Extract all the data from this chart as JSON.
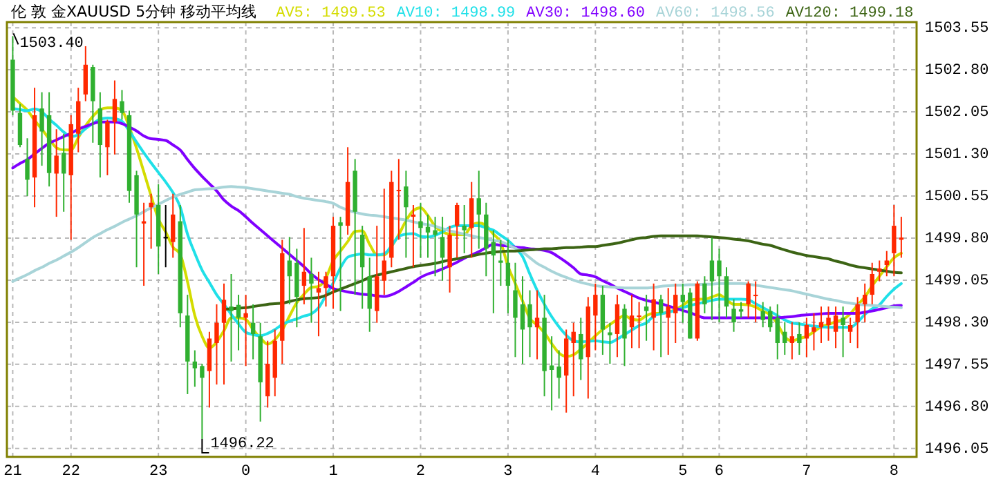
{
  "chart_data": {
    "type": "candlestick",
    "title": "伦 敦 金XAUUSD 5分钟 移动平均线",
    "legend": "top",
    "grid": true,
    "categories": [
      "21",
      null,
      null,
      null,
      null,
      null,
      null,
      null,
      "22",
      null,
      null,
      null,
      null,
      null,
      null,
      null,
      null,
      null,
      null,
      null,
      "23",
      null,
      null,
      null,
      null,
      null,
      null,
      null,
      null,
      null,
      null,
      null,
      "0",
      null,
      null,
      null,
      null,
      null,
      null,
      null,
      null,
      null,
      null,
      null,
      "1",
      null,
      null,
      null,
      null,
      null,
      null,
      null,
      null,
      null,
      null,
      null,
      "2",
      null,
      null,
      null,
      null,
      null,
      null,
      null,
      null,
      null,
      null,
      null,
      "3",
      null,
      null,
      null,
      null,
      null,
      null,
      null,
      null,
      null,
      null,
      null,
      "4",
      null,
      null,
      null,
      null,
      null,
      null,
      null,
      null,
      null,
      null,
      null,
      "5",
      null,
      null,
      null,
      null,
      "6",
      null,
      null,
      null,
      null,
      null,
      null,
      null,
      null,
      null,
      null,
      null,
      "7",
      null,
      null,
      null,
      null,
      null,
      null,
      null,
      null,
      null,
      null,
      null,
      "8",
      null
    ],
    "ylim": [
      1495.9,
      1503.65
    ],
    "yticks": [
      {
        "value": 1496.05,
        "label": "1496.05"
      },
      {
        "value": 1496.8,
        "label": "1496.80"
      },
      {
        "value": 1497.55,
        "label": "1497.55"
      },
      {
        "value": 1498.3,
        "label": "1498.30"
      },
      {
        "value": 1499.05,
        "label": "1499.05"
      },
      {
        "value": 1499.8,
        "label": "1499.80"
      },
      {
        "value": 1500.55,
        "label": "1500.55"
      },
      {
        "value": 1501.3,
        "label": "1501.30"
      },
      {
        "value": 1502.05,
        "label": "1502.05"
      },
      {
        "value": 1502.8,
        "label": "1502.80"
      },
      {
        "value": 1503.55,
        "label": "1503.55"
      }
    ],
    "ohlc": [
      [
        1502.98,
        1503.4,
        1501.99,
        1502.07
      ],
      [
        1502.03,
        1502.19,
        1501.42,
        1501.46
      ],
      [
        1501.21,
        1501.58,
        1500.55,
        1500.84
      ],
      [
        1500.88,
        1502.48,
        1500.35,
        1501.99
      ],
      [
        1502.11,
        1502.4,
        1501.09,
        1501.7
      ],
      [
        1501.99,
        1502.4,
        1500.72,
        1500.96
      ],
      [
        1500.95,
        1501.74,
        1500.18,
        1501.27
      ],
      [
        1501.32,
        1501.66,
        1500.27,
        1500.95
      ],
      [
        1500.92,
        1501.99,
        1499.77,
        1501.83
      ],
      [
        1501.66,
        1502.48,
        1501.33,
        1502.24
      ],
      [
        1502.36,
        1503.22,
        1502.24,
        1502.89
      ],
      [
        1502.85,
        1502.89,
        1501.5,
        1502.24
      ],
      [
        1502.11,
        1502.4,
        1500.88,
        1501.46
      ],
      [
        1501.42,
        1501.91,
        1500.92,
        1501.87
      ],
      [
        1501.87,
        1502.61,
        1501.29,
        1502.28
      ],
      [
        1502.24,
        1502.44,
        1501.91,
        1502.03
      ],
      [
        1501.99,
        1502.07,
        1500.43,
        1500.64
      ],
      [
        1500.92,
        1501.0,
        1499.28,
        1500.22
      ],
      [
        1500.06,
        1500.43,
        1498.95,
        1500.1
      ],
      [
        1500.35,
        1500.59,
        1499.61,
        1500.43
      ],
      [
        1500.39,
        1500.76,
        1499.16,
        1499.65
      ],
      [
        1499.82,
        1500.39,
        1499.28,
        1499.82
      ],
      [
        1499.73,
        1500.59,
        1499.45,
        1500.22
      ],
      [
        1500.1,
        1500.39,
        1498.21,
        1498.46
      ],
      [
        1498.42,
        1498.79,
        1497.02,
        1497.6
      ],
      [
        1497.6,
        1497.8,
        1497.15,
        1497.48
      ],
      [
        1497.52,
        1497.56,
        1496.22,
        1497.31
      ],
      [
        1497.43,
        1498.13,
        1496.78,
        1498.01
      ],
      [
        1497.93,
        1498.62,
        1497.19,
        1498.29
      ],
      [
        1498.29,
        1498.99,
        1497.19,
        1498.7
      ],
      [
        1498.58,
        1499.16,
        1497.6,
        1498.5
      ],
      [
        1498.61,
        1498.79,
        1497.8,
        1498.38
      ],
      [
        1498.38,
        1498.79,
        1497.52,
        1498.46
      ],
      [
        1498.29,
        1498.62,
        1497.64,
        1498.09
      ],
      [
        1498.05,
        1498.29,
        1496.53,
        1497.23
      ],
      [
        1496.98,
        1497.97,
        1496.78,
        1497.56
      ],
      [
        1497.31,
        1498.17,
        1496.98,
        1497.97
      ],
      [
        1497.97,
        1499.77,
        1497.56,
        1499.53
      ],
      [
        1499.4,
        1499.82,
        1498.62,
        1499.12
      ],
      [
        1499.36,
        1499.61,
        1498.21,
        1498.75
      ],
      [
        1498.95,
        1499.98,
        1498.62,
        1499.2
      ],
      [
        1499.16,
        1499.45,
        1498.29,
        1498.99
      ],
      [
        1498.83,
        1499.2,
        1498.05,
        1498.91
      ],
      [
        1498.91,
        1499.2,
        1498.58,
        1499.12
      ],
      [
        1499.12,
        1500.18,
        1498.54,
        1500.02
      ],
      [
        1500.08,
        1500.18,
        1498.5,
        1500.02
      ],
      [
        1500.02,
        1501.42,
        1499.86,
        1500.8
      ],
      [
        1501.0,
        1501.21,
        1498.79,
        1500.27
      ],
      [
        1499.86,
        1500.02,
        1498.54,
        1499.28
      ],
      [
        1499.12,
        1499.45,
        1498.13,
        1498.54
      ],
      [
        1498.5,
        1500.02,
        1498.29,
        1499.12
      ],
      [
        1499.04,
        1500.68,
        1498.79,
        1499.4
      ],
      [
        1499.45,
        1501.0,
        1499.28,
        1500.8
      ],
      [
        1500.64,
        1501.21,
        1499.77,
        1500.66
      ],
      [
        1500.72,
        1501.0,
        1499.45,
        1500.35
      ],
      [
        1500.18,
        1500.39,
        1499.28,
        1500.22
      ],
      [
        1500.1,
        1500.43,
        1499.45,
        1499.98
      ],
      [
        1500.0,
        1500.22,
        1499.45,
        1499.9
      ],
      [
        1499.94,
        1500.18,
        1499.12,
        1499.86
      ],
      [
        1499.82,
        1500.18,
        1499.04,
        1499.45
      ],
      [
        1499.28,
        1500.02,
        1498.83,
        1499.86
      ],
      [
        1500.02,
        1500.43,
        1499.45,
        1500.39
      ],
      [
        1500.02,
        1500.39,
        1499.53,
        1499.94
      ],
      [
        1499.98,
        1500.8,
        1499.45,
        1500.51
      ],
      [
        1500.51,
        1501.0,
        1499.61,
        1500.22
      ],
      [
        1500.22,
        1500.43,
        1499.12,
        1499.61
      ],
      [
        1499.73,
        1499.94,
        1498.46,
        1499.49
      ],
      [
        1499.4,
        1499.77,
        1498.95,
        1499.36
      ],
      [
        1499.36,
        1499.77,
        1498.46,
        1498.95
      ],
      [
        1498.87,
        1499.36,
        1497.68,
        1498.38
      ],
      [
        1498.62,
        1499.12,
        1497.56,
        1498.17
      ],
      [
        1498.62,
        1498.87,
        1497.68,
        1498.21
      ],
      [
        1498.21,
        1498.87,
        1497.64,
        1498.38
      ],
      [
        1498.38,
        1498.79,
        1496.98,
        1497.43
      ],
      [
        1497.53,
        1498.05,
        1496.73,
        1497.45
      ],
      [
        1497.51,
        1497.8,
        1496.94,
        1497.31
      ],
      [
        1497.35,
        1498.17,
        1496.69,
        1498.01
      ],
      [
        1497.93,
        1498.29,
        1496.98,
        1498.13
      ],
      [
        1498.09,
        1498.38,
        1497.27,
        1497.64
      ],
      [
        1497.68,
        1498.75,
        1496.94,
        1498.58
      ],
      [
        1498.42,
        1498.99,
        1497.8,
        1498.79
      ],
      [
        1498.79,
        1498.95,
        1497.72,
        1498.17
      ],
      [
        1498.12,
        1498.29,
        1497.56,
        1498.07
      ],
      [
        1498.09,
        1498.79,
        1497.68,
        1498.62
      ],
      [
        1498.54,
        1498.62,
        1497.52,
        1498.01
      ],
      [
        1498.21,
        1498.79,
        1497.84,
        1498.42
      ],
      [
        1498.4,
        1498.66,
        1497.84,
        1498.42
      ],
      [
        1498.58,
        1498.79,
        1497.97,
        1498.5
      ],
      [
        1498.38,
        1498.99,
        1497.8,
        1498.71
      ],
      [
        1498.71,
        1498.79,
        1497.68,
        1498.46
      ],
      [
        1498.38,
        1498.91,
        1497.72,
        1498.58
      ],
      [
        1498.46,
        1498.99,
        1497.93,
        1498.79
      ],
      [
        1498.79,
        1498.99,
        1498.29,
        1498.66
      ],
      [
        1498.83,
        1498.91,
        1498.01,
        1498.01
      ],
      [
        1498.01,
        1499.03,
        1497.97,
        1498.99
      ],
      [
        1498.99,
        1499.12,
        1498.46,
        1498.62
      ],
      [
        1499.4,
        1499.81,
        1498.34,
        1499.03
      ],
      [
        1499.4,
        1499.61,
        1498.3,
        1499.12
      ],
      [
        1499.12,
        1499.28,
        1498.38,
        1498.58
      ],
      [
        1498.54,
        1498.71,
        1498.13,
        1498.3
      ],
      [
        1498.53,
        1498.66,
        1498.38,
        1498.49
      ],
      [
        1498.62,
        1499.03,
        1498.38,
        1498.99
      ],
      [
        1498.77,
        1499.03,
        1498.3,
        1498.79
      ],
      [
        1498.5,
        1498.66,
        1498.21,
        1498.34
      ],
      [
        1498.5,
        1498.58,
        1498.13,
        1498.21
      ],
      [
        1498.38,
        1498.62,
        1497.64,
        1497.93
      ],
      [
        1498.13,
        1498.3,
        1497.72,
        1497.93
      ],
      [
        1497.93,
        1498.3,
        1497.64,
        1498.05
      ],
      [
        1498.09,
        1498.3,
        1497.72,
        1497.93
      ],
      [
        1498.01,
        1498.38,
        1497.68,
        1498.25
      ],
      [
        1498.13,
        1498.46,
        1497.8,
        1498.21
      ],
      [
        1498.21,
        1498.58,
        1497.93,
        1498.3
      ],
      [
        1498.25,
        1498.58,
        1497.97,
        1498.38
      ],
      [
        1498.13,
        1498.58,
        1497.84,
        1498.42
      ],
      [
        1498.38,
        1498.58,
        1497.68,
        1498.25
      ],
      [
        1498.13,
        1498.38,
        1497.93,
        1498.25
      ],
      [
        1498.3,
        1498.75,
        1497.84,
        1498.62
      ],
      [
        1498.62,
        1498.99,
        1498.3,
        1498.79
      ],
      [
        1498.79,
        1499.36,
        1498.62,
        1499.16
      ],
      [
        1499.2,
        1499.4,
        1499.03,
        1499.26
      ],
      [
        1499.32,
        1499.57,
        1499.12,
        1499.4
      ],
      [
        1499.53,
        1500.39,
        1499.12,
        1500.02
      ],
      [
        1499.77,
        1500.18,
        1499.45,
        1499.81
      ]
    ],
    "colors": [
      "#30b030",
      "#30b030",
      "#30b030",
      "#ff2800",
      "#30b030",
      "#30b030",
      "#ff2800",
      "#30b030",
      "#ff2800",
      "#ff2800",
      "#ff2800",
      "#30b030",
      "#30b030",
      "#ff2800",
      "#ff2800",
      "#30b030",
      "#30b030",
      "#30b030",
      "#ff2800",
      "#ff2800",
      "#30b030",
      "#000000",
      "#ff2800",
      "#30b030",
      "#30b030",
      "#30b030",
      "#30b030",
      "#ff2800",
      "#ff2800",
      "#ff2800",
      "#30b030",
      "#30b030",
      "#ff2800",
      "#30b030",
      "#30b030",
      "#ff2800",
      "#ff2800",
      "#ff2800",
      "#30b030",
      "#30b030",
      "#ff2800",
      "#30b030",
      "#ff2800",
      "#ff2800",
      "#ff2800",
      "#30b030",
      "#ff2800",
      "#30b030",
      "#30b030",
      "#30b030",
      "#ff2800",
      "#ff2800",
      "#ff2800",
      "#ff2800",
      "#30b030",
      "#ff2800",
      "#30b030",
      "#30b030",
      "#30b030",
      "#30b030",
      "#ff2800",
      "#ff2800",
      "#30b030",
      "#ff2800",
      "#30b030",
      "#30b030",
      "#30b030",
      "#30b030",
      "#30b030",
      "#30b030",
      "#30b030",
      "#30b030",
      "#ff2800",
      "#30b030",
      "#30b030",
      "#30b030",
      "#ff2800",
      "#ff2800",
      "#30b030",
      "#ff2800",
      "#ff2800",
      "#30b030",
      "#30b030",
      "#ff2800",
      "#30b030",
      "#ff2800",
      "#ff2800",
      "#30b030",
      "#ff2800",
      "#30b030",
      "#ff2800",
      "#ff2800",
      "#30b030",
      "#30b030",
      "#ff2800",
      "#30b030",
      "#30b030",
      "#30b030",
      "#30b030",
      "#30b030",
      "#30b030",
      "#ff2800",
      "#ff2800",
      "#30b030",
      "#30b030",
      "#30b030",
      "#30b030",
      "#ff2800",
      "#30b030",
      "#ff2800",
      "#ff2800",
      "#ff2800",
      "#ff2800",
      "#ff2800",
      "#30b030",
      "#ff2800",
      "#ff2800",
      "#ff2800",
      "#ff2800",
      "#ff2800",
      "#ff2800",
      "#ff2800",
      "#ff2800"
    ],
    "series": [
      {
        "name": "AV5: 1499.53",
        "type": "line",
        "color": "#d4dc00",
        "values": [
          1502.32,
          1502.2,
          1502.08,
          1501.9,
          1501.74,
          1501.57,
          1501.41,
          1501.37,
          1501.37,
          1501.59,
          1501.8,
          1501.97,
          1502.09,
          1502.12,
          1502.12,
          1502.07,
          1501.78,
          1501.4,
          1500.98,
          1500.55,
          1500.14,
          1499.91,
          1499.64,
          1499.51,
          1499.02,
          1498.42,
          1498.05,
          1497.84,
          1497.95,
          1498.15,
          1498.38,
          1498.38,
          1498.35,
          1498.17,
          1498.02,
          1497.91,
          1497.99,
          1498.16,
          1498.41,
          1498.65,
          1498.8,
          1498.92,
          1498.94,
          1499.09,
          1499.4,
          1499.57,
          1499.74,
          1499.92,
          1499.93,
          1499.69,
          1499.5,
          1499.5,
          1499.65,
          1499.86,
          1500.11,
          1500.29,
          1500.34,
          1500.2,
          1500.01,
          1499.91,
          1499.87,
          1499.86,
          1499.86,
          1500.02,
          1500.07,
          1500.02,
          1499.87,
          1499.72,
          1499.3,
          1498.99,
          1498.68,
          1498.37,
          1498.25,
          1498.11,
          1497.92,
          1497.75,
          1497.69,
          1497.72,
          1497.82,
          1497.93,
          1498.06,
          1498.17,
          1498.26,
          1498.35,
          1498.42,
          1498.35,
          1498.34,
          1498.42,
          1498.46,
          1498.46,
          1498.48,
          1498.53,
          1498.6,
          1498.69,
          1498.71,
          1498.71,
          1498.75,
          1498.79,
          1498.7,
          1498.62,
          1498.62,
          1498.61,
          1498.57,
          1498.5,
          1498.43,
          1498.27,
          1498.04,
          1497.97,
          1498.01,
          1498.05,
          1498.13,
          1498.22,
          1498.26,
          1498.31,
          1498.35,
          1498.45,
          1498.61,
          1498.75,
          1498.95,
          1499.12,
          1499.29,
          1499.45,
          1499.53
        ]
      },
      {
        "name": "AV10: 1498.99",
        "type": "line",
        "color": "#20e0e8",
        "values": [
          1502.11,
          1502.09,
          1502.07,
          1502.1,
          1502.05,
          1501.92,
          1501.81,
          1501.69,
          1501.61,
          1501.64,
          1501.75,
          1501.84,
          1501.92,
          1501.94,
          1501.93,
          1501.88,
          1501.71,
          1501.51,
          1501.32,
          1501.14,
          1500.97,
          1500.8,
          1500.61,
          1500.35,
          1499.87,
          1499.53,
          1499.23,
          1499.01,
          1498.79,
          1498.62,
          1498.44,
          1498.27,
          1498.12,
          1498.08,
          1498.06,
          1498.1,
          1498.17,
          1498.26,
          1498.32,
          1498.36,
          1498.41,
          1498.45,
          1498.56,
          1498.78,
          1499.0,
          1499.27,
          1499.46,
          1499.5,
          1499.52,
          1499.5,
          1499.5,
          1499.52,
          1499.66,
          1499.83,
          1499.87,
          1499.88,
          1499.83,
          1499.82,
          1499.85,
          1499.91,
          1499.99,
          1500.02,
          1500.02,
          1500.02,
          1500.02,
          1499.98,
          1499.94,
          1499.85,
          1499.76,
          1499.63,
          1499.47,
          1499.16,
          1498.87,
          1498.62,
          1498.4,
          1498.22,
          1498.07,
          1497.97,
          1497.95,
          1497.96,
          1497.97,
          1497.95,
          1497.94,
          1498.0,
          1498.08,
          1498.16,
          1498.24,
          1498.29,
          1498.41,
          1498.45,
          1498.48,
          1498.51,
          1498.56,
          1498.6,
          1498.63,
          1498.66,
          1498.69,
          1498.71,
          1498.71,
          1498.71,
          1498.71,
          1498.7,
          1498.63,
          1498.56,
          1498.49,
          1498.42,
          1498.34,
          1498.29,
          1498.27,
          1498.25,
          1498.23,
          1498.22,
          1498.21,
          1498.21,
          1498.21,
          1498.21,
          1498.3,
          1498.44,
          1498.54,
          1498.61,
          1498.76,
          1498.89,
          1498.99
        ]
      },
      {
        "name": "AV30: 1498.60",
        "type": "line",
        "color": "#8000ff",
        "values": [
          1501.05,
          1501.13,
          1501.2,
          1501.3,
          1501.4,
          1501.49,
          1501.55,
          1501.61,
          1501.67,
          1501.74,
          1501.79,
          1501.84,
          1501.87,
          1501.87,
          1501.87,
          1501.84,
          1501.78,
          1501.71,
          1501.62,
          1501.57,
          1501.56,
          1501.54,
          1501.46,
          1501.37,
          1501.2,
          1501.04,
          1500.9,
          1500.77,
          1500.64,
          1500.48,
          1500.37,
          1500.29,
          1500.18,
          1500.06,
          1499.95,
          1499.84,
          1499.73,
          1499.62,
          1499.51,
          1499.4,
          1499.29,
          1499.16,
          1499.06,
          1498.98,
          1498.9,
          1498.87,
          1498.84,
          1498.82,
          1498.8,
          1498.79,
          1498.77,
          1498.76,
          1498.79,
          1498.85,
          1498.93,
          1499.01,
          1499.1,
          1499.16,
          1499.2,
          1499.25,
          1499.31,
          1499.37,
          1499.44,
          1499.5,
          1499.56,
          1499.63,
          1499.69,
          1499.67,
          1499.66,
          1499.64,
          1499.63,
          1499.61,
          1499.6,
          1499.58,
          1499.54,
          1499.46,
          1499.37,
          1499.27,
          1499.16,
          1499.14,
          1499.11,
          1499.04,
          1498.98,
          1498.91,
          1498.85,
          1498.79,
          1498.73,
          1498.69,
          1498.66,
          1498.63,
          1498.59,
          1498.55,
          1498.51,
          1498.47,
          1498.42,
          1498.38,
          1498.38,
          1498.38,
          1498.38,
          1498.38,
          1498.38,
          1498.38,
          1498.38,
          1498.38,
          1498.38,
          1498.38,
          1498.39,
          1498.4,
          1498.42,
          1498.43,
          1498.44,
          1498.45,
          1498.46,
          1498.46,
          1498.46,
          1498.46,
          1498.46,
          1498.48,
          1498.5,
          1498.53,
          1498.56,
          1498.59,
          1498.6
        ]
      },
      {
        "name": "AV60: 1498.56",
        "type": "line",
        "color": "#a8d4d8",
        "values": [
          1499.03,
          1499.09,
          1499.15,
          1499.22,
          1499.28,
          1499.35,
          1499.41,
          1499.48,
          1499.55,
          1499.63,
          1499.72,
          1499.81,
          1499.88,
          1499.95,
          1500.01,
          1500.08,
          1500.14,
          1500.2,
          1500.27,
          1500.34,
          1500.4,
          1500.47,
          1500.53,
          1500.58,
          1500.62,
          1500.66,
          1500.67,
          1500.68,
          1500.69,
          1500.71,
          1500.72,
          1500.71,
          1500.7,
          1500.68,
          1500.66,
          1500.64,
          1500.62,
          1500.6,
          1500.58,
          1500.54,
          1500.51,
          1500.49,
          1500.47,
          1500.45,
          1500.42,
          1500.35,
          1500.3,
          1500.26,
          1500.23,
          1500.21,
          1500.2,
          1500.18,
          1500.16,
          1500.14,
          1500.12,
          1500.09,
          1500.06,
          1500.04,
          1500.01,
          1499.97,
          1499.93,
          1499.9,
          1499.87,
          1499.84,
          1499.81,
          1499.79,
          1499.76,
          1499.74,
          1499.68,
          1499.62,
          1499.55,
          1499.45,
          1499.35,
          1499.28,
          1499.21,
          1499.15,
          1499.1,
          1499.05,
          1499.01,
          1498.98,
          1498.95,
          1498.94,
          1498.93,
          1498.92,
          1498.91,
          1498.91,
          1498.91,
          1498.91,
          1498.92,
          1498.94,
          1498.95,
          1498.96,
          1498.96,
          1498.97,
          1498.97,
          1498.98,
          1498.98,
          1498.99,
          1498.99,
          1498.99,
          1498.99,
          1498.98,
          1498.96,
          1498.94,
          1498.92,
          1498.9,
          1498.88,
          1498.86,
          1498.83,
          1498.8,
          1498.77,
          1498.74,
          1498.71,
          1498.69,
          1498.66,
          1498.64,
          1498.62,
          1498.61,
          1498.6,
          1498.59,
          1498.58,
          1498.57,
          1498.56
        ]
      },
      {
        "name": "AV120: 1499.18",
        "type": "line",
        "color": "#3c6414",
        "values": [
          null,
          null,
          null,
          null,
          null,
          null,
          null,
          null,
          null,
          null,
          null,
          null,
          null,
          null,
          null,
          null,
          null,
          null,
          null,
          null,
          null,
          null,
          null,
          null,
          null,
          null,
          null,
          null,
          null,
          1498.53,
          1498.54,
          1498.55,
          1498.56,
          1498.58,
          1498.6,
          1498.62,
          1498.63,
          1498.64,
          1498.67,
          1498.7,
          1498.72,
          1498.73,
          1498.74,
          1498.78,
          1498.84,
          1498.89,
          1498.94,
          1498.99,
          1499.04,
          1499.1,
          1499.14,
          1499.17,
          1499.2,
          1499.23,
          1499.26,
          1499.29,
          1499.31,
          1499.33,
          1499.35,
          1499.38,
          1499.41,
          1499.43,
          1499.46,
          1499.48,
          1499.51,
          1499.53,
          1499.55,
          1499.56,
          1499.57,
          1499.57,
          1499.58,
          1499.59,
          1499.6,
          1499.61,
          1499.61,
          1499.62,
          1499.63,
          1499.63,
          1499.64,
          1499.65,
          1499.65,
          1499.67,
          1499.69,
          1499.71,
          1499.74,
          1499.77,
          1499.8,
          1499.81,
          1499.83,
          1499.84,
          1499.84,
          1499.84,
          1499.84,
          1499.84,
          1499.84,
          1499.83,
          1499.82,
          1499.81,
          1499.8,
          1499.78,
          1499.77,
          1499.75,
          1499.72,
          1499.69,
          1499.67,
          1499.63,
          1499.59,
          1499.55,
          1499.52,
          1499.49,
          1499.47,
          1499.45,
          1499.43,
          1499.39,
          1499.36,
          1499.32,
          1499.29,
          1499.27,
          1499.25,
          1499.23,
          1499.21,
          1499.19,
          1499.18
        ]
      }
    ],
    "annotations": [
      "1503.40",
      "1496.22"
    ]
  }
}
